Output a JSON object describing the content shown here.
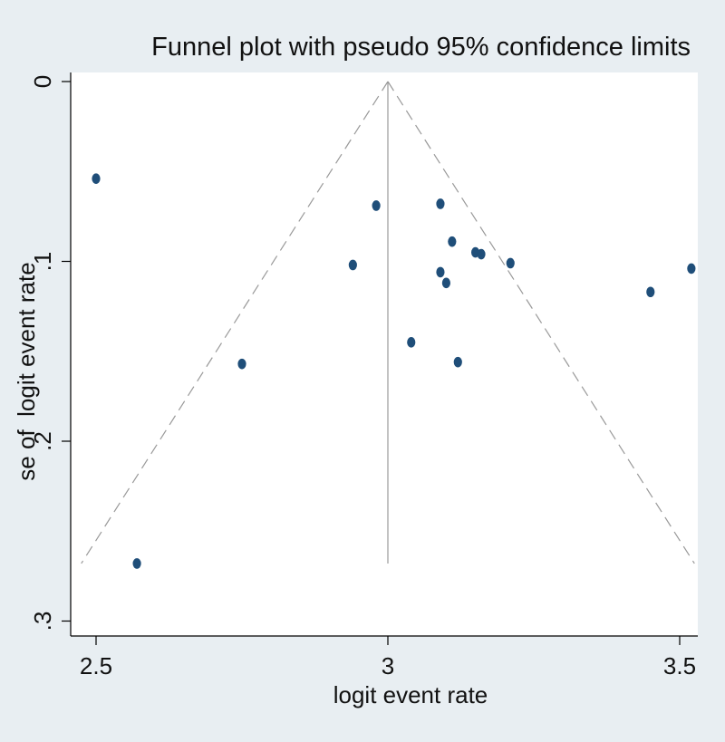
{
  "chart_data": {
    "type": "scatter",
    "title": "Funnel plot with pseudo 95% confidence limits",
    "xlabel": "logit event rate",
    "ylabel": "se of  logit event rate",
    "xlim": [
      2.46,
      3.53
    ],
    "ylim": [
      0,
      0.3
    ],
    "y_reversed": true,
    "grid": false,
    "x_ticks": [
      {
        "value": 2.5,
        "label": "2.5"
      },
      {
        "value": 3,
        "label": "3"
      },
      {
        "value": 3.5,
        "label": "3.5"
      }
    ],
    "y_ticks": [
      {
        "value": 0,
        "label": "0"
      },
      {
        "value": 0.1,
        "label": ".1"
      },
      {
        "value": 0.2,
        "label": ".2"
      },
      {
        "value": 0.3,
        "label": ".3"
      }
    ],
    "funnel": {
      "center_x": 3.0,
      "se_max": 0.268,
      "z": 1.96,
      "ci_line_style": "dashed",
      "ci_color": "#999999",
      "center_line_color": "#999999"
    },
    "series": [
      {
        "marker_color": "#1f4e79",
        "points": [
          {
            "x": 2.5,
            "y": 0.054
          },
          {
            "x": 2.57,
            "y": 0.268
          },
          {
            "x": 2.75,
            "y": 0.157
          },
          {
            "x": 2.94,
            "y": 0.102
          },
          {
            "x": 2.98,
            "y": 0.069
          },
          {
            "x": 3.04,
            "y": 0.145
          },
          {
            "x": 3.09,
            "y": 0.068
          },
          {
            "x": 3.09,
            "y": 0.106
          },
          {
            "x": 3.1,
            "y": 0.112
          },
          {
            "x": 3.11,
            "y": 0.089
          },
          {
            "x": 3.12,
            "y": 0.156
          },
          {
            "x": 3.15,
            "y": 0.095
          },
          {
            "x": 3.16,
            "y": 0.096
          },
          {
            "x": 3.21,
            "y": 0.101
          },
          {
            "x": 3.45,
            "y": 0.117
          },
          {
            "x": 3.52,
            "y": 0.104
          }
        ]
      }
    ]
  }
}
